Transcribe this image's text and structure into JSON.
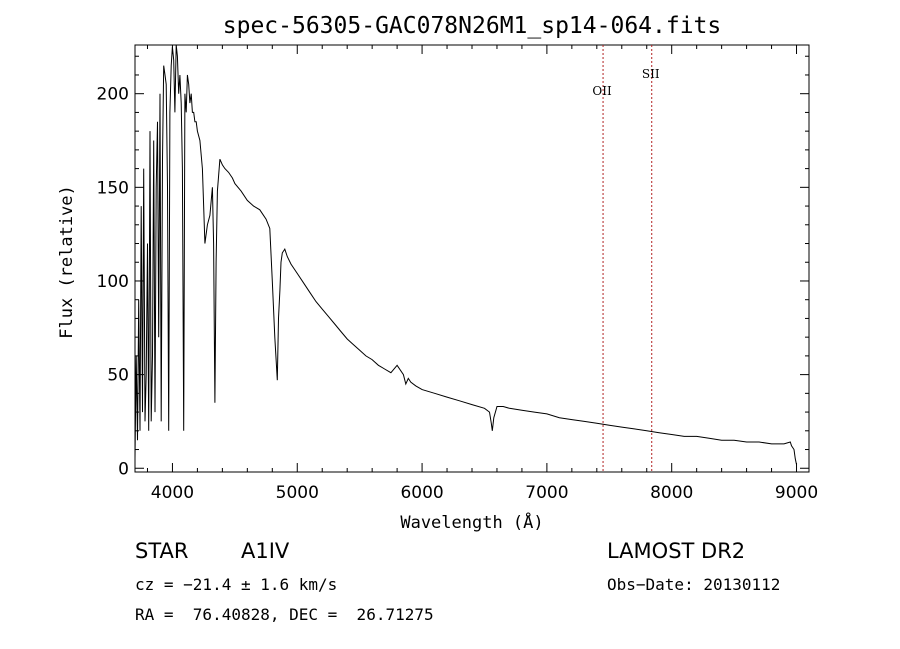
{
  "chart_data": {
    "type": "line",
    "title": "spec-56305-GAC078N26M1_sp14-064.fits",
    "xlabel": "Wavelength (Å)",
    "ylabel": "Flux (relative)",
    "xlim": [
      3700,
      9100
    ],
    "ylim": [
      -2,
      226
    ],
    "xticks": [
      4000,
      5000,
      6000,
      7000,
      8000,
      9000
    ],
    "yticks": [
      0,
      50,
      100,
      150,
      200
    ],
    "tick_labels_x": [
      "4000",
      "5000",
      "6000",
      "7000",
      "8000",
      "9000"
    ],
    "tick_labels_y": [
      "0",
      "50",
      "100",
      "150",
      "200"
    ],
    "series": [
      {
        "name": "spectrum",
        "x": [
          3700,
          3710,
          3720,
          3730,
          3740,
          3750,
          3760,
          3770,
          3780,
          3790,
          3800,
          3810,
          3820,
          3830,
          3840,
          3850,
          3860,
          3870,
          3880,
          3890,
          3900,
          3910,
          3920,
          3930,
          3940,
          3950,
          3960,
          3970,
          3980,
          3990,
          4000,
          4010,
          4020,
          4030,
          4040,
          4050,
          4060,
          4070,
          4080,
          4090,
          4100,
          4110,
          4120,
          4130,
          4140,
          4150,
          4160,
          4170,
          4180,
          4190,
          4200,
          4220,
          4240,
          4260,
          4280,
          4300,
          4320,
          4330,
          4340,
          4350,
          4360,
          4380,
          4400,
          4420,
          4450,
          4480,
          4500,
          4550,
          4600,
          4650,
          4700,
          4750,
          4780,
          4800,
          4820,
          4840,
          4850,
          4861,
          4870,
          4880,
          4900,
          4920,
          4950,
          5000,
          5050,
          5100,
          5150,
          5200,
          5250,
          5300,
          5350,
          5400,
          5450,
          5500,
          5550,
          5600,
          5650,
          5700,
          5750,
          5800,
          5850,
          5870,
          5890,
          5910,
          5950,
          6000,
          6100,
          6200,
          6300,
          6400,
          6500,
          6540,
          6555,
          6563,
          6575,
          6600,
          6650,
          6700,
          6800,
          6900,
          7000,
          7100,
          7200,
          7300,
          7400,
          7500,
          7600,
          7700,
          7800,
          7900,
          8000,
          8100,
          8200,
          8300,
          8400,
          8500,
          8600,
          8700,
          8800,
          8900,
          8950,
          8960,
          8980,
          8990,
          9000
        ],
        "values": [
          5,
          60,
          15,
          90,
          20,
          140,
          30,
          160,
          25,
          50,
          120,
          20,
          180,
          25,
          60,
          175,
          30,
          150,
          185,
          70,
          200,
          25,
          165,
          215,
          210,
          205,
          150,
          20,
          190,
          215,
          225,
          218,
          190,
          230,
          220,
          200,
          210,
          195,
          160,
          20,
          200,
          190,
          210,
          205,
          195,
          200,
          190,
          190,
          185,
          185,
          180,
          175,
          160,
          120,
          130,
          135,
          150,
          120,
          35,
          110,
          148,
          165,
          162,
          160,
          158,
          155,
          152,
          148,
          143,
          140,
          138,
          133,
          128,
          100,
          70,
          47,
          80,
          95,
          110,
          115,
          117,
          113,
          109,
          104,
          99,
          94,
          89,
          85,
          81,
          77,
          73,
          69,
          66,
          63,
          60,
          58,
          55,
          53,
          51,
          55,
          50,
          45,
          48,
          46,
          44,
          42,
          40,
          38,
          36,
          34,
          32,
          30,
          24,
          20,
          27,
          33,
          33,
          32,
          31,
          30,
          29,
          27,
          26,
          25,
          24,
          23,
          22,
          21,
          20,
          19,
          18,
          17,
          17,
          16,
          15,
          15,
          14,
          14,
          13,
          13,
          14,
          12,
          10,
          5,
          2
        ]
      }
    ],
    "markers": [
      {
        "label": "OII",
        "x": 7450
      },
      {
        "label": "SII",
        "x": 7840
      }
    ],
    "marker_color": "#b22222",
    "line_color": "#000000"
  },
  "info": {
    "class": "STAR",
    "subclass": "A1IV",
    "survey": "LAMOST DR2",
    "cz": "cz = −21.4 ± 1.6 km/s",
    "obs_date": "Obs−Date: 20130112",
    "radec": "RA =  76.40828, DEC =  26.71275"
  }
}
